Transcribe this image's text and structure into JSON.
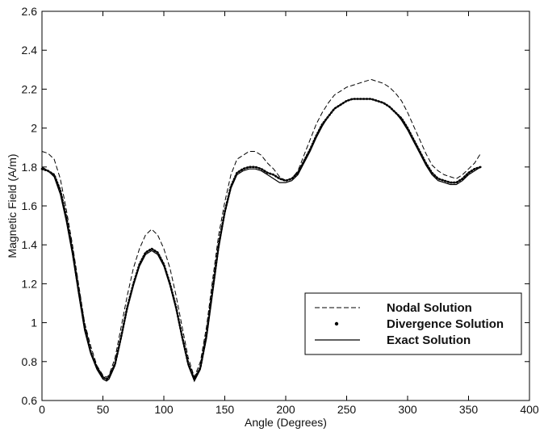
{
  "chart_data": {
    "type": "line",
    "xlabel": "Angle (Degrees)",
    "ylabel": "Magnetic Field (A/m)",
    "xlim": [
      0,
      400
    ],
    "ylim": [
      0.6,
      2.6
    ],
    "xticks": [
      "0",
      "50",
      "100",
      "150",
      "200",
      "250",
      "300",
      "350",
      "400"
    ],
    "yticks": [
      "0.6",
      "0.8",
      "1",
      "1.2",
      "1.4",
      "1.6",
      "1.8",
      "2",
      "2.2",
      "2.4",
      "2.6"
    ],
    "grid": false,
    "legend_position": "bottom-right",
    "series": [
      {
        "name": "Nodal Solution",
        "style": "dashed",
        "x": [
          0,
          5,
          10,
          15,
          20,
          25,
          30,
          35,
          40,
          45,
          50,
          53,
          55,
          60,
          65,
          70,
          75,
          80,
          85,
          90,
          95,
          100,
          105,
          110,
          115,
          120,
          125,
          130,
          135,
          140,
          145,
          150,
          155,
          160,
          165,
          170,
          175,
          180,
          185,
          190,
          195,
          200,
          205,
          210,
          215,
          220,
          225,
          230,
          235,
          240,
          245,
          250,
          255,
          260,
          265,
          270,
          275,
          280,
          285,
          290,
          295,
          300,
          305,
          310,
          315,
          320,
          325,
          330,
          335,
          340,
          345,
          350,
          355,
          360
        ],
        "values": [
          1.88,
          1.87,
          1.84,
          1.74,
          1.58,
          1.4,
          1.2,
          1.0,
          0.88,
          0.78,
          0.73,
          0.72,
          0.73,
          0.82,
          0.98,
          1.14,
          1.28,
          1.38,
          1.45,
          1.48,
          1.45,
          1.38,
          1.28,
          1.14,
          0.98,
          0.82,
          0.72,
          0.8,
          0.98,
          1.22,
          1.45,
          1.62,
          1.76,
          1.84,
          1.86,
          1.88,
          1.88,
          1.86,
          1.82,
          1.79,
          1.75,
          1.73,
          1.74,
          1.78,
          1.86,
          1.94,
          2.02,
          2.08,
          2.13,
          2.17,
          2.19,
          2.21,
          2.22,
          2.23,
          2.24,
          2.25,
          2.24,
          2.23,
          2.21,
          2.18,
          2.14,
          2.08,
          2.01,
          1.94,
          1.87,
          1.81,
          1.78,
          1.76,
          1.75,
          1.74,
          1.76,
          1.79,
          1.82,
          1.87
        ]
      },
      {
        "name": "Divergence Solution",
        "style": "dotted",
        "x": [
          0,
          5,
          10,
          15,
          20,
          25,
          30,
          35,
          40,
          45,
          50,
          53,
          55,
          60,
          65,
          70,
          75,
          80,
          85,
          90,
          95,
          100,
          105,
          110,
          115,
          120,
          125,
          130,
          135,
          140,
          145,
          150,
          155,
          160,
          165,
          170,
          175,
          180,
          185,
          190,
          195,
          200,
          205,
          210,
          215,
          220,
          225,
          230,
          235,
          240,
          245,
          250,
          255,
          260,
          265,
          270,
          275,
          280,
          285,
          290,
          295,
          300,
          305,
          310,
          315,
          320,
          325,
          330,
          335,
          340,
          345,
          350,
          355,
          360
        ],
        "values": [
          1.79,
          1.78,
          1.76,
          1.68,
          1.54,
          1.37,
          1.17,
          0.98,
          0.85,
          0.77,
          0.72,
          0.71,
          0.72,
          0.79,
          0.93,
          1.08,
          1.2,
          1.3,
          1.36,
          1.38,
          1.36,
          1.3,
          1.2,
          1.08,
          0.93,
          0.79,
          0.71,
          0.77,
          0.94,
          1.17,
          1.4,
          1.57,
          1.7,
          1.77,
          1.79,
          1.8,
          1.8,
          1.79,
          1.77,
          1.76,
          1.74,
          1.73,
          1.74,
          1.77,
          1.83,
          1.89,
          1.96,
          2.02,
          2.06,
          2.1,
          2.12,
          2.14,
          2.15,
          2.15,
          2.15,
          2.15,
          2.14,
          2.13,
          2.11,
          2.08,
          2.05,
          2.0,
          1.94,
          1.88,
          1.82,
          1.77,
          1.74,
          1.73,
          1.72,
          1.72,
          1.74,
          1.77,
          1.79,
          1.8
        ]
      },
      {
        "name": "Exact Solution",
        "style": "solid",
        "x": [
          0,
          5,
          10,
          15,
          20,
          25,
          30,
          35,
          40,
          45,
          50,
          53,
          55,
          60,
          65,
          70,
          75,
          80,
          85,
          90,
          95,
          100,
          105,
          110,
          115,
          120,
          125,
          130,
          135,
          140,
          145,
          150,
          155,
          160,
          165,
          170,
          175,
          180,
          185,
          190,
          195,
          200,
          205,
          210,
          215,
          220,
          225,
          230,
          235,
          240,
          245,
          250,
          255,
          260,
          265,
          270,
          275,
          280,
          285,
          290,
          295,
          300,
          305,
          310,
          315,
          320,
          325,
          330,
          335,
          340,
          345,
          350,
          355,
          360
        ],
        "values": [
          1.8,
          1.78,
          1.75,
          1.66,
          1.52,
          1.35,
          1.15,
          0.96,
          0.84,
          0.76,
          0.71,
          0.7,
          0.71,
          0.78,
          0.92,
          1.07,
          1.19,
          1.29,
          1.35,
          1.37,
          1.35,
          1.29,
          1.19,
          1.07,
          0.92,
          0.78,
          0.7,
          0.76,
          0.92,
          1.15,
          1.38,
          1.56,
          1.69,
          1.76,
          1.78,
          1.79,
          1.79,
          1.78,
          1.76,
          1.74,
          1.72,
          1.72,
          1.73,
          1.76,
          1.82,
          1.88,
          1.95,
          2.01,
          2.06,
          2.1,
          2.12,
          2.14,
          2.15,
          2.15,
          2.15,
          2.15,
          2.14,
          2.13,
          2.11,
          2.08,
          2.04,
          1.99,
          1.93,
          1.87,
          1.81,
          1.76,
          1.73,
          1.72,
          1.71,
          1.71,
          1.73,
          1.76,
          1.78,
          1.8
        ]
      }
    ]
  }
}
